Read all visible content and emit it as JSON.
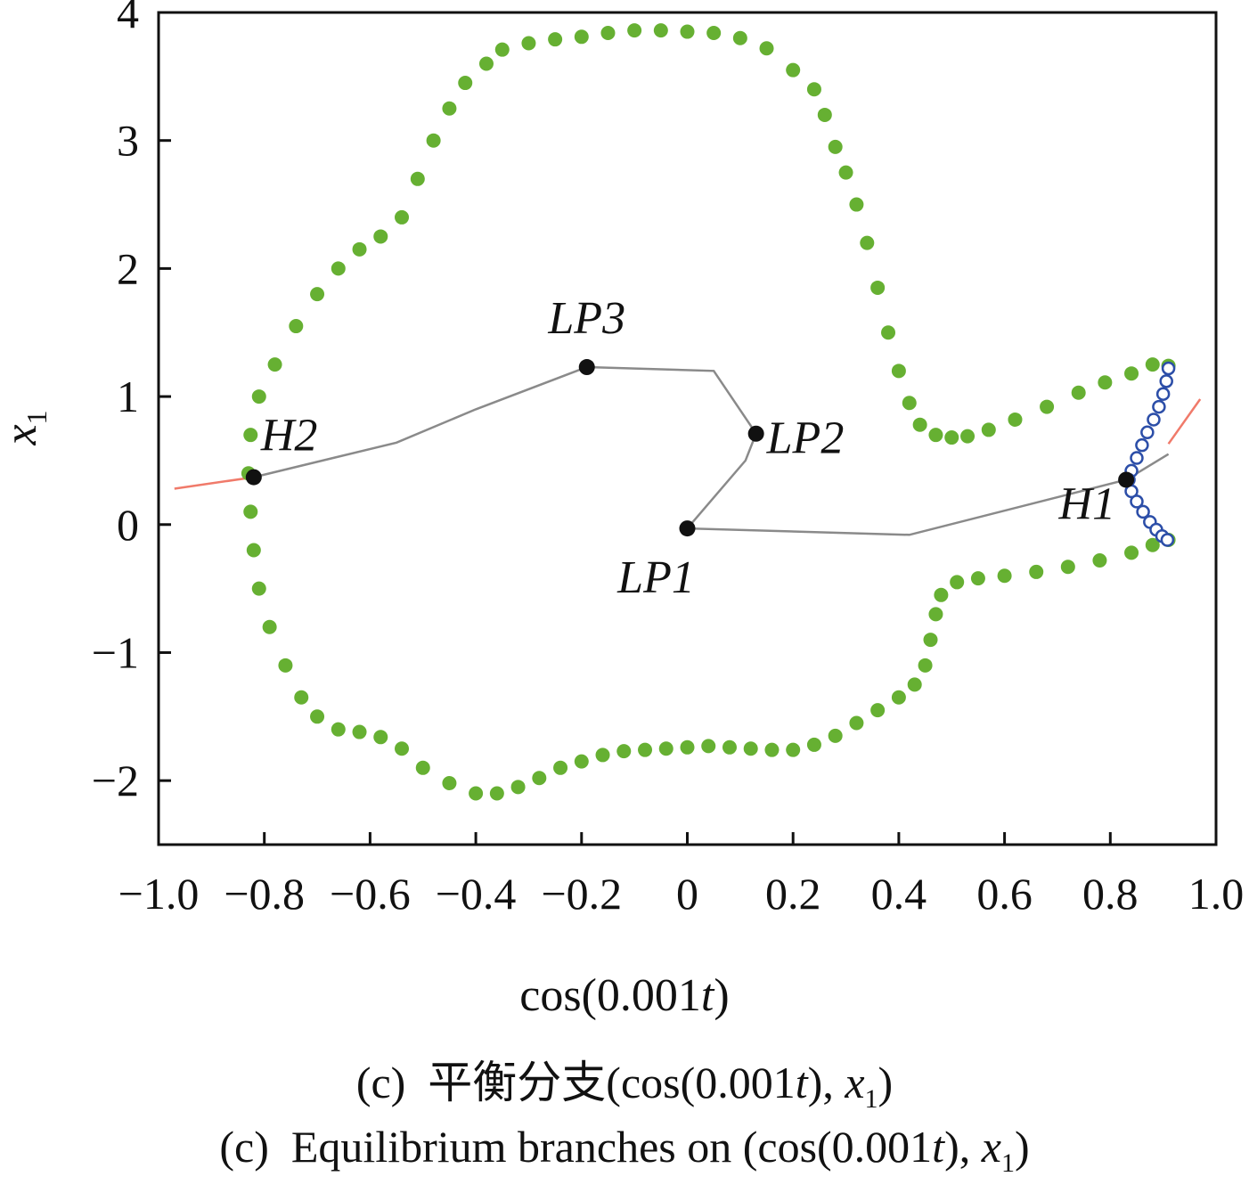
{
  "chart_data": {
    "type": "scatter",
    "xlabel": "cos(0.001t)",
    "ylabel": "x1",
    "xlim": [
      -1.0,
      1.0
    ],
    "ylim": [
      -2.5,
      4.0
    ],
    "x_ticks": [
      {
        "v": -1.0,
        "label": "−1.0"
      },
      {
        "v": -0.8,
        "label": "−0.8"
      },
      {
        "v": -0.6,
        "label": "−0.6"
      },
      {
        "v": -0.4,
        "label": "−0.4"
      },
      {
        "v": -0.2,
        "label": "−0.2"
      },
      {
        "v": 0,
        "label": "0"
      },
      {
        "v": 0.2,
        "label": "0.2"
      },
      {
        "v": 0.4,
        "label": "0.4"
      },
      {
        "v": 0.6,
        "label": "0.6"
      },
      {
        "v": 0.8,
        "label": "0.8"
      },
      {
        "v": 1.0,
        "label": "1.0"
      }
    ],
    "y_ticks": [
      {
        "v": 4,
        "label": "4"
      },
      {
        "v": 3,
        "label": "3"
      },
      {
        "v": 2,
        "label": "2"
      },
      {
        "v": 1,
        "label": "1"
      },
      {
        "v": 0,
        "label": "0"
      },
      {
        "v": -1,
        "label": "−1"
      },
      {
        "v": -2,
        "label": "−2"
      }
    ],
    "grid": false,
    "periodic_branch": {
      "color": "#66b032",
      "points": [
        [
          0.91,
          1.24
        ],
        [
          0.88,
          1.25
        ],
        [
          0.84,
          1.18
        ],
        [
          0.79,
          1.11
        ],
        [
          0.74,
          1.03
        ],
        [
          0.68,
          0.92
        ],
        [
          0.62,
          0.82
        ],
        [
          0.57,
          0.74
        ],
        [
          0.53,
          0.69
        ],
        [
          0.5,
          0.68
        ],
        [
          0.47,
          0.7
        ],
        [
          0.44,
          0.78
        ],
        [
          0.42,
          0.95
        ],
        [
          0.4,
          1.2
        ],
        [
          0.38,
          1.5
        ],
        [
          0.36,
          1.85
        ],
        [
          0.34,
          2.2
        ],
        [
          0.32,
          2.5
        ],
        [
          0.3,
          2.75
        ],
        [
          0.28,
          2.95
        ],
        [
          0.26,
          3.2
        ],
        [
          0.24,
          3.4
        ],
        [
          0.2,
          3.55
        ],
        [
          0.15,
          3.72
        ],
        [
          0.1,
          3.8
        ],
        [
          0.05,
          3.84
        ],
        [
          0.0,
          3.85
        ],
        [
          -0.05,
          3.86
        ],
        [
          -0.1,
          3.86
        ],
        [
          -0.15,
          3.84
        ],
        [
          -0.2,
          3.81
        ],
        [
          -0.25,
          3.79
        ],
        [
          -0.3,
          3.76
        ],
        [
          -0.35,
          3.71
        ],
        [
          -0.38,
          3.6
        ],
        [
          -0.42,
          3.45
        ],
        [
          -0.45,
          3.25
        ],
        [
          -0.48,
          3.0
        ],
        [
          -0.51,
          2.7
        ],
        [
          -0.54,
          2.4
        ],
        [
          -0.58,
          2.25
        ],
        [
          -0.62,
          2.15
        ],
        [
          -0.66,
          2.0
        ],
        [
          -0.7,
          1.8
        ],
        [
          -0.74,
          1.55
        ],
        [
          -0.78,
          1.25
        ],
        [
          -0.81,
          1.0
        ],
        [
          -0.826,
          0.7
        ],
        [
          -0.83,
          0.4
        ],
        [
          -0.826,
          0.1
        ],
        [
          -0.82,
          -0.2
        ],
        [
          -0.81,
          -0.5
        ],
        [
          -0.79,
          -0.8
        ],
        [
          -0.76,
          -1.1
        ],
        [
          -0.73,
          -1.35
        ],
        [
          -0.7,
          -1.5
        ],
        [
          -0.66,
          -1.6
        ],
        [
          -0.62,
          -1.62
        ],
        [
          -0.58,
          -1.66
        ],
        [
          -0.54,
          -1.75
        ],
        [
          -0.5,
          -1.9
        ],
        [
          -0.45,
          -2.02
        ],
        [
          -0.4,
          -2.1
        ],
        [
          -0.36,
          -2.1
        ],
        [
          -0.32,
          -2.05
        ],
        [
          -0.28,
          -1.98
        ],
        [
          -0.24,
          -1.9
        ],
        [
          -0.2,
          -1.85
        ],
        [
          -0.16,
          -1.8
        ],
        [
          -0.12,
          -1.77
        ],
        [
          -0.08,
          -1.76
        ],
        [
          -0.04,
          -1.75
        ],
        [
          0.0,
          -1.74
        ],
        [
          0.04,
          -1.73
        ],
        [
          0.08,
          -1.74
        ],
        [
          0.12,
          -1.75
        ],
        [
          0.16,
          -1.76
        ],
        [
          0.2,
          -1.76
        ],
        [
          0.24,
          -1.72
        ],
        [
          0.28,
          -1.65
        ],
        [
          0.32,
          -1.55
        ],
        [
          0.36,
          -1.45
        ],
        [
          0.4,
          -1.35
        ],
        [
          0.43,
          -1.25
        ],
        [
          0.45,
          -1.1
        ],
        [
          0.46,
          -0.9
        ],
        [
          0.47,
          -0.7
        ],
        [
          0.48,
          -0.55
        ],
        [
          0.51,
          -0.45
        ],
        [
          0.55,
          -0.42
        ],
        [
          0.6,
          -0.4
        ],
        [
          0.66,
          -0.37
        ],
        [
          0.72,
          -0.33
        ],
        [
          0.78,
          -0.28
        ],
        [
          0.84,
          -0.22
        ],
        [
          0.88,
          -0.16
        ],
        [
          0.91,
          -0.12
        ]
      ]
    },
    "hopf_arc": {
      "color": "#2c4ea8",
      "points": [
        [
          0.91,
          1.22
        ],
        [
          0.906,
          1.12
        ],
        [
          0.9,
          1.02
        ],
        [
          0.892,
          0.92
        ],
        [
          0.882,
          0.82
        ],
        [
          0.87,
          0.72
        ],
        [
          0.86,
          0.62
        ],
        [
          0.85,
          0.52
        ],
        [
          0.84,
          0.42
        ],
        [
          0.835,
          0.35
        ],
        [
          0.84,
          0.26
        ],
        [
          0.85,
          0.18
        ],
        [
          0.862,
          0.1
        ],
        [
          0.875,
          0.02
        ],
        [
          0.887,
          -0.04
        ],
        [
          0.898,
          -0.09
        ],
        [
          0.908,
          -0.12
        ]
      ]
    },
    "equilibrium_curve": {
      "color": "#8a8a8a",
      "points": [
        [
          -0.82,
          0.37
        ],
        [
          -0.55,
          0.64
        ],
        [
          -0.4,
          0.9
        ],
        [
          -0.19,
          1.23
        ],
        [
          0.05,
          1.2
        ],
        [
          0.13,
          0.71
        ],
        [
          0.11,
          0.5
        ],
        [
          0.0,
          -0.03
        ],
        [
          0.42,
          -0.08
        ],
        [
          0.83,
          0.35
        ],
        [
          0.91,
          0.55
        ]
      ]
    },
    "unstable_tails": {
      "color": "#f07a6a",
      "left": [
        [
          -0.97,
          0.28
        ],
        [
          -0.82,
          0.37
        ]
      ],
      "right": [
        [
          0.91,
          0.63
        ],
        [
          0.97,
          0.98
        ]
      ]
    },
    "bifurcation_points": [
      {
        "label": "H2",
        "x": -0.82,
        "y": 0.37
      },
      {
        "label": "LP3",
        "x": -0.19,
        "y": 1.23
      },
      {
        "label": "LP2",
        "x": 0.13,
        "y": 0.71
      },
      {
        "label": "LP1",
        "x": 0.0,
        "y": -0.03
      },
      {
        "label": "H1",
        "x": 0.83,
        "y": 0.35
      }
    ]
  },
  "captions": {
    "xlabel": "cos(0.001t)",
    "zh": "(c)  平衡分支(cos(0.001t), x1)",
    "en": "(c)  Equilibrium branches on (cos(0.001t), x1)"
  }
}
